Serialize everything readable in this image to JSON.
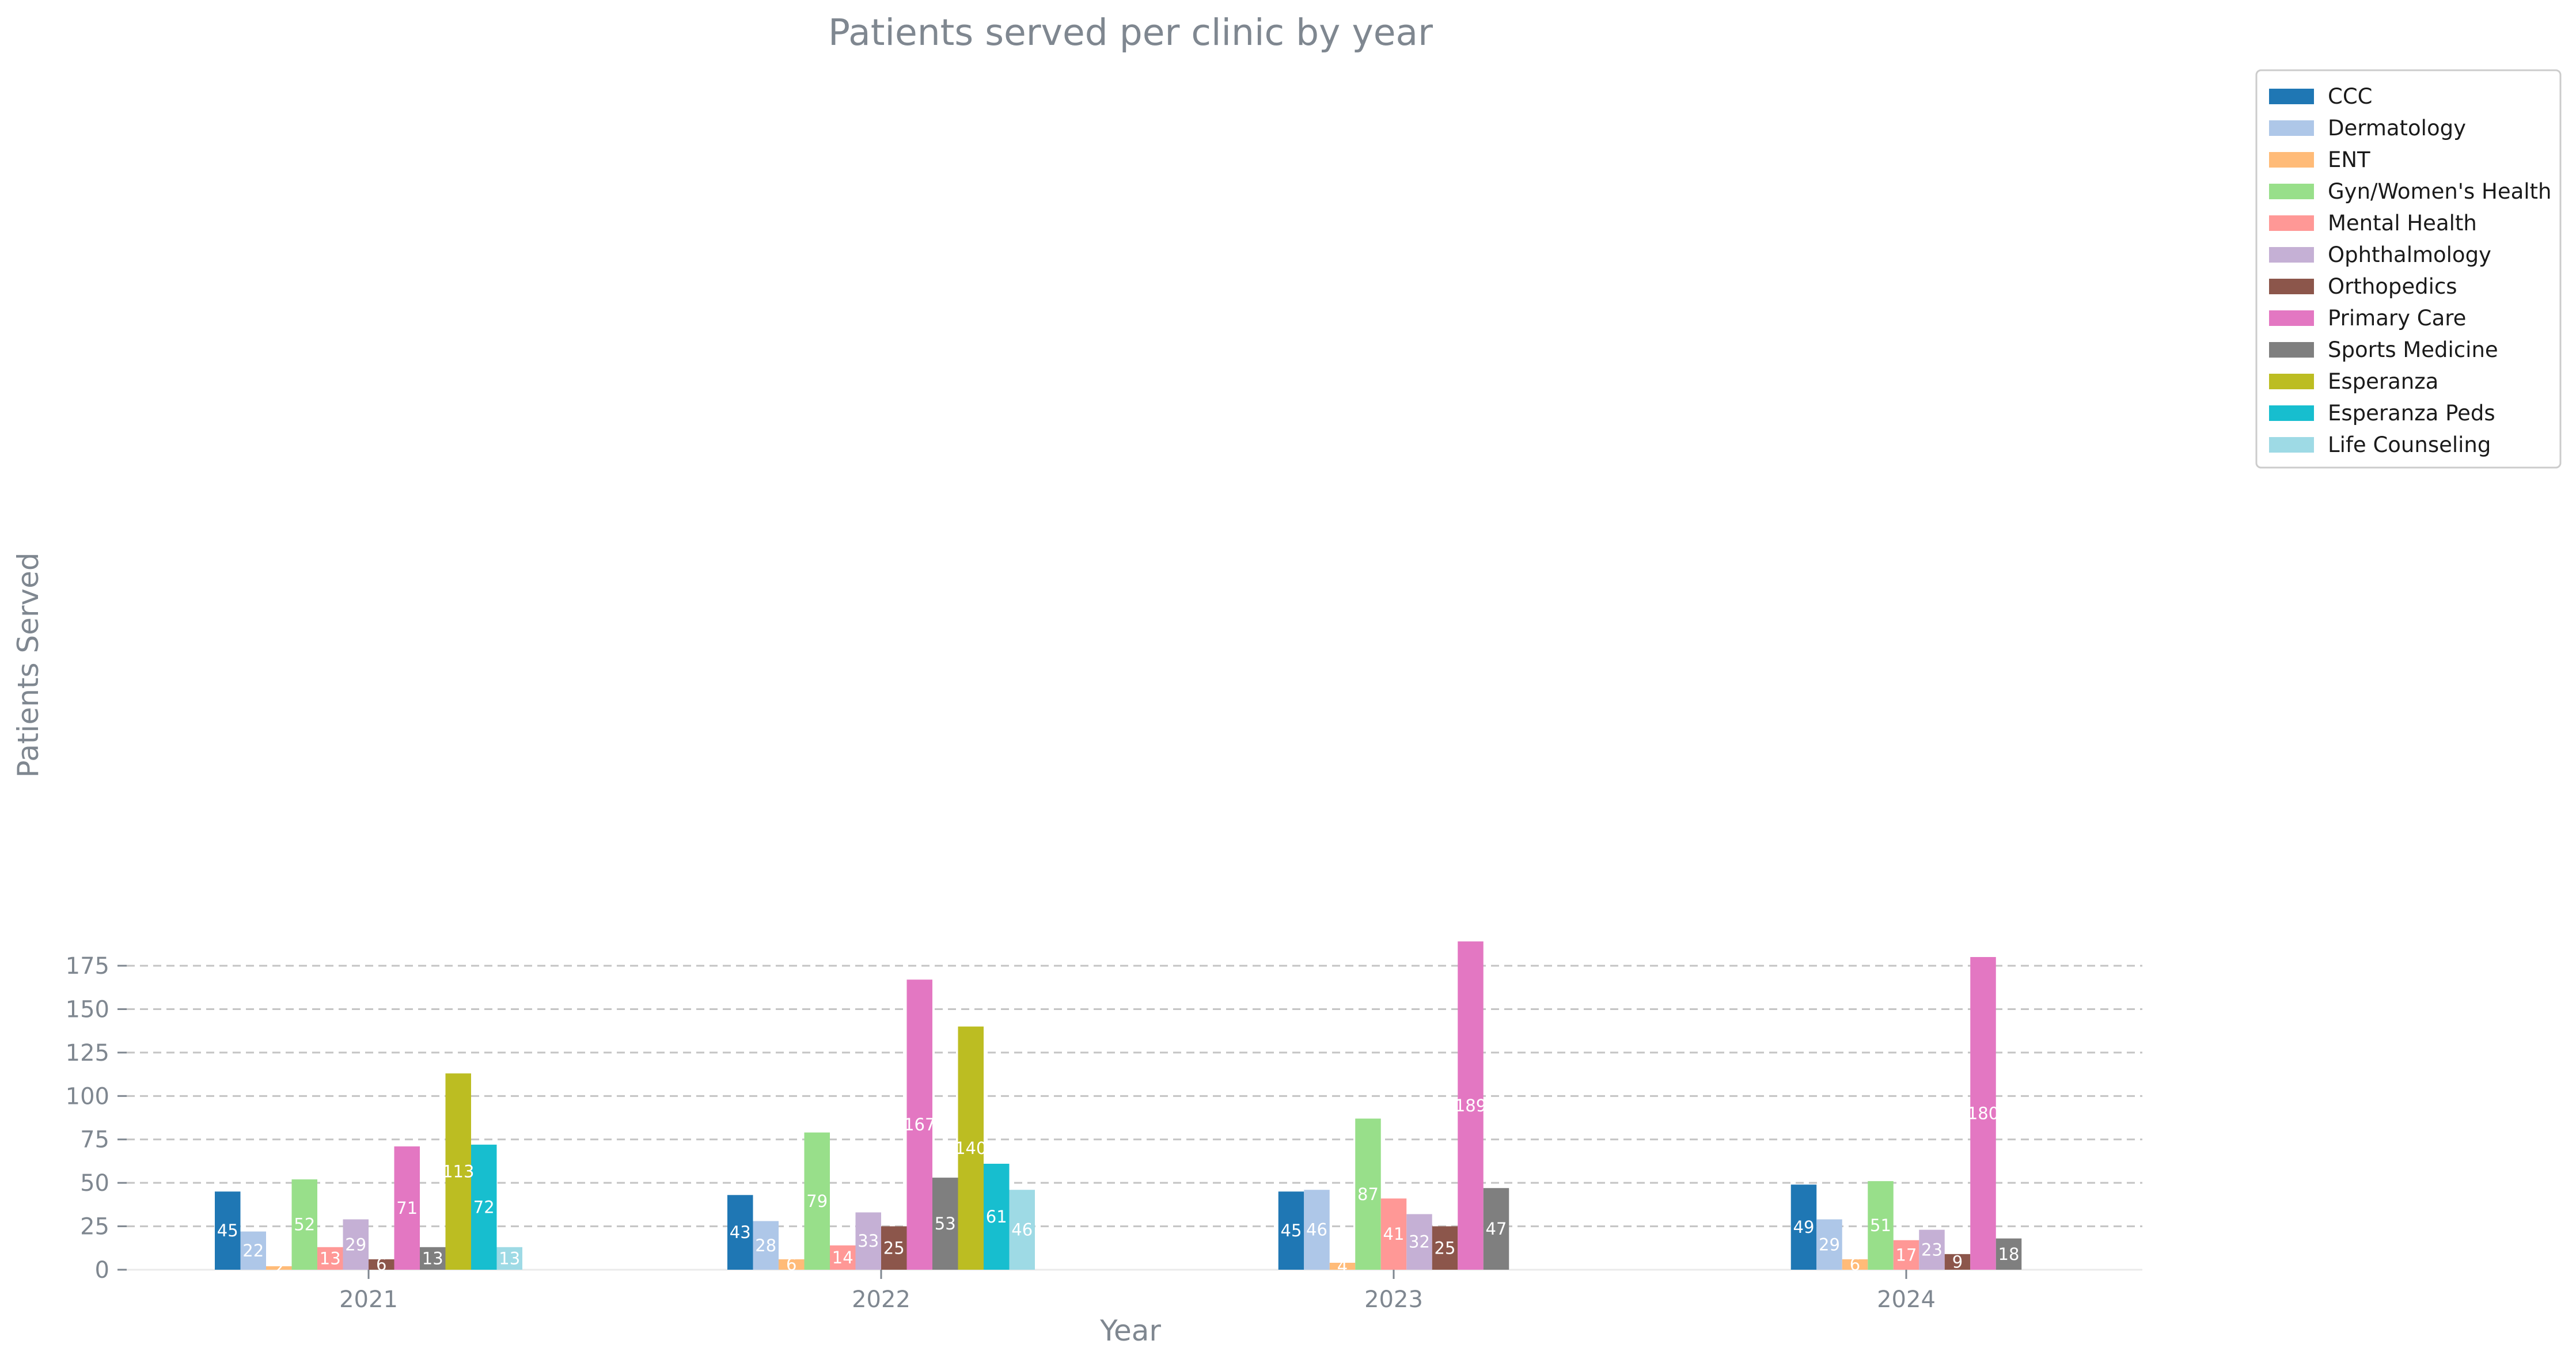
{
  "chart_data": {
    "type": "bar",
    "title": "Patients served per clinic by year",
    "xlabel": "Year",
    "ylabel": "Patients Served",
    "categories": [
      "2021",
      "2022",
      "2023",
      "2024"
    ],
    "ylim": [
      0,
      197
    ],
    "yticks": [
      0,
      25,
      50,
      75,
      100,
      125,
      150,
      175
    ],
    "grid": "horizontal dashed",
    "legend": "outside top-right",
    "series": [
      {
        "name": "CCC",
        "color": "#1f77b4",
        "values": [
          45,
          43,
          45,
          49
        ]
      },
      {
        "name": "Dermatology",
        "color": "#aec7e8",
        "values": [
          22,
          28,
          46,
          29
        ]
      },
      {
        "name": "ENT",
        "color": "#ffbb78",
        "values": [
          2,
          6,
          4,
          6
        ]
      },
      {
        "name": "Gyn/Women's Health",
        "color": "#98df8a",
        "values": [
          52,
          79,
          87,
          51
        ]
      },
      {
        "name": "Mental Health",
        "color": "#ff9896",
        "values": [
          13,
          14,
          41,
          17
        ]
      },
      {
        "name": "Ophthalmology",
        "color": "#c5b0d5",
        "values": [
          29,
          33,
          32,
          23
        ]
      },
      {
        "name": "Orthopedics",
        "color": "#8c564b",
        "values": [
          6,
          25,
          25,
          9
        ]
      },
      {
        "name": "Primary Care",
        "color": "#e377c2",
        "values": [
          71,
          167,
          189,
          180
        ]
      },
      {
        "name": "Sports Medicine",
        "color": "#7f7f7f",
        "values": [
          13,
          53,
          47,
          18
        ]
      },
      {
        "name": "Esperanza",
        "color": "#bcbd22",
        "values": [
          113,
          140,
          null,
          null
        ]
      },
      {
        "name": "Esperanza Peds",
        "color": "#17becf",
        "values": [
          72,
          61,
          null,
          null
        ]
      },
      {
        "name": "Life Counseling",
        "color": "#9edae5",
        "values": [
          13,
          46,
          null,
          null
        ]
      }
    ]
  }
}
